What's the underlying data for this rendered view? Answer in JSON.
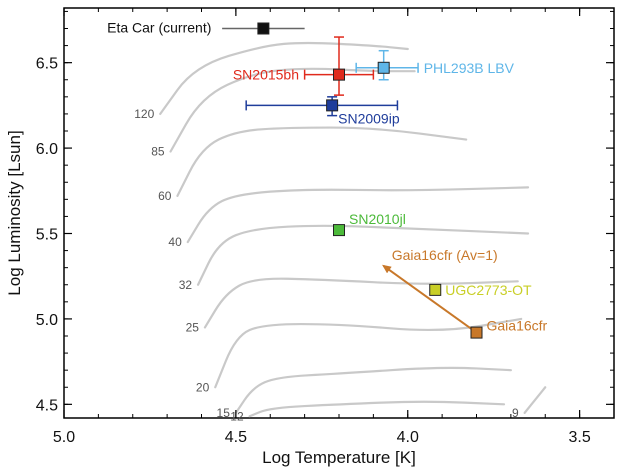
{
  "chart_data": {
    "type": "scatter",
    "xlabel": "Log Temperature [K]",
    "ylabel": "Log Luminosity [Lsun]",
    "xlim": [
      5.0,
      3.4
    ],
    "ylim": [
      4.42,
      6.82
    ],
    "x_inverted": true,
    "x_ticks": [
      5.0,
      4.5,
      4.0,
      3.5
    ],
    "x_tick_labels": [
      "5.0",
      "4.5",
      "4.0",
      "3.5"
    ],
    "y_ticks": [
      4.5,
      5.0,
      5.5,
      6.0,
      6.5
    ],
    "y_tick_labels": [
      "4.5",
      "5.0",
      "5.5",
      "6.0",
      "6.5"
    ],
    "points": [
      {
        "label": "Eta Car (current)",
        "x": 4.42,
        "y": 6.7,
        "xerr": [
          0.12,
          0.12
        ],
        "yerr": [
          0,
          0
        ],
        "color": "#111111"
      },
      {
        "label": "SN2015bh",
        "x": 4.2,
        "y": 6.43,
        "xerr": [
          0.1,
          0.1
        ],
        "yerr": [
          0.22,
          0.12
        ],
        "color": "#e02a1c"
      },
      {
        "label": "PHL293B LBV",
        "x": 4.07,
        "y": 6.47,
        "xerr": [
          0.08,
          0.1
        ],
        "yerr": [
          0.1,
          0.07
        ],
        "color": "#5fb6e8"
      },
      {
        "label": "SN2009ip",
        "x": 4.22,
        "y": 6.25,
        "xerr": [
          0.25,
          0.19
        ],
        "yerr": [
          0.05,
          0.06
        ],
        "color": "#1f3d9b"
      },
      {
        "label": "SN2010jl",
        "x": 4.2,
        "y": 5.52,
        "xerr": [
          0,
          0
        ],
        "yerr": [
          0,
          0
        ],
        "color": "#4cba3a"
      },
      {
        "label": "UGC2773-OT",
        "x": 3.92,
        "y": 5.17,
        "xerr": [
          0,
          0
        ],
        "yerr": [
          0,
          0
        ],
        "color": "#c9cf27"
      },
      {
        "label": "Gaia16cfr",
        "x": 3.8,
        "y": 4.92,
        "xerr": [
          0,
          0
        ],
        "yerr": [
          0,
          0
        ],
        "color": "#c8782a"
      }
    ],
    "arrow": {
      "label": "Gaia16cfr (Av=1)",
      "from": [
        3.8,
        4.92
      ],
      "to": [
        4.07,
        5.31
      ],
      "color": "#c8782a"
    },
    "tracks": [
      {
        "mass": "120",
        "points": [
          [
            4.72,
            6.2
          ],
          [
            4.62,
            6.48
          ],
          [
            4.42,
            6.6
          ],
          [
            4.3,
            6.62
          ],
          [
            4.1,
            6.6
          ],
          [
            4.0,
            6.58
          ]
        ]
      },
      {
        "mass": "85",
        "points": [
          [
            4.69,
            5.98
          ],
          [
            4.6,
            6.3
          ],
          [
            4.45,
            6.44
          ],
          [
            4.3,
            6.47
          ],
          [
            4.1,
            6.45
          ],
          [
            3.98,
            6.45
          ]
        ]
      },
      {
        "mass": "60",
        "points": [
          [
            4.67,
            5.72
          ],
          [
            4.6,
            6.0
          ],
          [
            4.5,
            6.1
          ],
          [
            4.35,
            6.12
          ],
          [
            4.1,
            6.12
          ],
          [
            3.83,
            6.05
          ]
        ]
      },
      {
        "mass": "40",
        "points": [
          [
            4.64,
            5.45
          ],
          [
            4.58,
            5.65
          ],
          [
            4.5,
            5.73
          ],
          [
            4.3,
            5.76
          ],
          [
            4.0,
            5.75
          ],
          [
            3.65,
            5.77
          ]
        ]
      },
      {
        "mass": "32",
        "points": [
          [
            4.61,
            5.2
          ],
          [
            4.55,
            5.45
          ],
          [
            4.45,
            5.53
          ],
          [
            4.25,
            5.55
          ],
          [
            4.0,
            5.53
          ],
          [
            3.65,
            5.5
          ]
        ]
      },
      {
        "mass": "25",
        "points": [
          [
            4.59,
            4.95
          ],
          [
            4.53,
            5.15
          ],
          [
            4.45,
            5.24
          ],
          [
            4.25,
            5.23
          ],
          [
            3.95,
            5.2
          ],
          [
            3.68,
            5.22
          ]
        ]
      },
      {
        "mass": "20",
        "points": [
          [
            4.56,
            4.6
          ],
          [
            4.5,
            4.9
          ],
          [
            4.42,
            4.97
          ],
          [
            4.2,
            4.97
          ],
          [
            3.9,
            4.92
          ],
          [
            3.67,
            5.0
          ]
        ]
      },
      {
        "mass": "15",
        "points": [
          [
            4.5,
            4.45
          ],
          [
            4.45,
            4.6
          ],
          [
            4.38,
            4.66
          ],
          [
            4.2,
            4.68
          ],
          [
            3.9,
            4.72
          ],
          [
            3.7,
            4.7
          ]
        ]
      },
      {
        "mass": "12",
        "points": [
          [
            4.46,
            4.43
          ],
          [
            4.4,
            4.48
          ],
          [
            4.2,
            4.5
          ],
          [
            3.95,
            4.52
          ],
          [
            3.72,
            4.5
          ]
        ]
      },
      {
        "mass": "9",
        "points": [
          [
            3.66,
            4.45
          ],
          [
            3.62,
            4.55
          ],
          [
            3.6,
            4.6
          ]
        ]
      }
    ]
  }
}
